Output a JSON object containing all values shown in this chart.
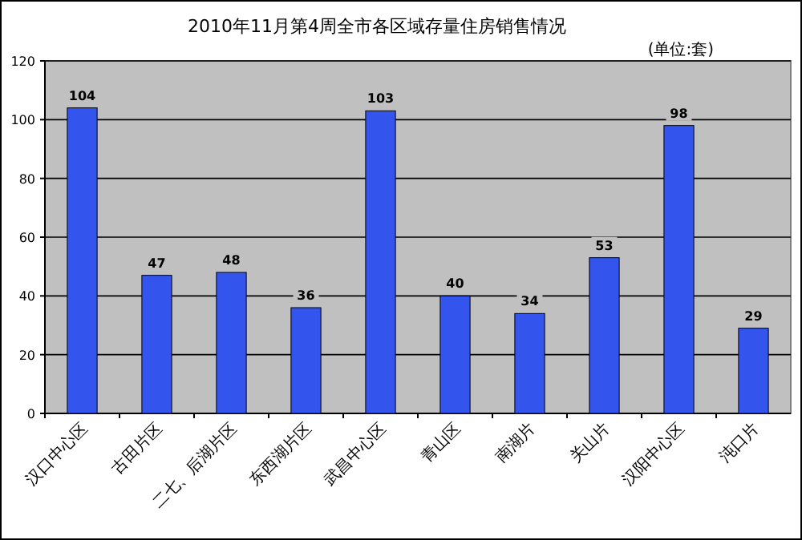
{
  "chart_data": {
    "type": "bar",
    "title": "2010年11月第4周全市各区域存量住房销售情况",
    "annotations": [
      "(单位:套)"
    ],
    "categories": [
      "汉口中心区",
      "古田片区",
      "二七、后湖片区",
      "东西湖片区",
      "武昌中心区",
      "青山区",
      "南湖片",
      "关山片",
      "汉阳中心区",
      "沌口片"
    ],
    "values": [
      104,
      47,
      48,
      36,
      103,
      40,
      34,
      53,
      98,
      29
    ],
    "color": "#3355ee",
    "ylim": [
      0,
      120
    ],
    "yticks": [
      0,
      20,
      40,
      60,
      80,
      100,
      120
    ],
    "grid": "y",
    "data_labels": true
  }
}
